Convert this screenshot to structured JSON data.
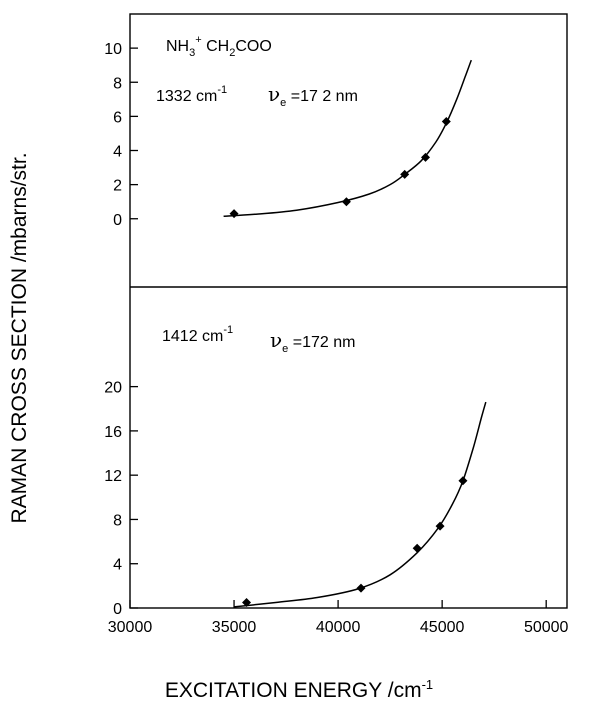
{
  "ylabel": "RAMAN CROSS SECTION /mbarns/str.",
  "xlabel": {
    "main": "EXCITATION ENERGY /cm",
    "sup": "-1"
  },
  "chart_data": [
    {
      "type": "scatter",
      "panel": "top",
      "annotations": {
        "formula": {
          "a": "NH",
          "a_sub": "3",
          "a_sup": "+",
          "b": " CH",
          "b_sub": "2",
          "c": "COO"
        },
        "band": {
          "text": "1332  cm",
          "sup": "-1"
        },
        "nu": {
          "symbol": "ν",
          "sub": "e",
          "rest": " =17 2 nm"
        }
      },
      "xlim": [
        30000,
        51000
      ],
      "ylim": [
        -4,
        12
      ],
      "yticks": [
        0,
        2,
        4,
        6,
        8,
        10
      ],
      "series": [
        {
          "points": [
            {
              "x": 35000,
              "y": 0.3
            },
            {
              "x": 40400,
              "y": 1.0
            },
            {
              "x": 43200,
              "y": 2.6
            },
            {
              "x": 44200,
              "y": 3.6
            },
            {
              "x": 45200,
              "y": 5.7
            }
          ],
          "fit": [
            {
              "x": 34500,
              "y": 0.15
            },
            {
              "x": 36000,
              "y": 0.26
            },
            {
              "x": 38000,
              "y": 0.5
            },
            {
              "x": 40000,
              "y": 0.95
            },
            {
              "x": 41500,
              "y": 1.45
            },
            {
              "x": 42500,
              "y": 2.0
            },
            {
              "x": 43200,
              "y": 2.6
            },
            {
              "x": 44000,
              "y": 3.4
            },
            {
              "x": 44700,
              "y": 4.5
            },
            {
              "x": 45200,
              "y": 5.6
            },
            {
              "x": 45700,
              "y": 7.0
            },
            {
              "x": 46100,
              "y": 8.3
            },
            {
              "x": 46400,
              "y": 9.3
            }
          ]
        }
      ]
    },
    {
      "type": "scatter",
      "panel": "bottom",
      "annotations": {
        "band": {
          "text": "1412 cm",
          "sup": "-1"
        },
        "nu": {
          "symbol": "ν",
          "sub": "e",
          "rest": " =172 nm"
        }
      },
      "xlim": [
        30000,
        51000
      ],
      "ylim": [
        0,
        29
      ],
      "xticks": [
        30000,
        35000,
        40000,
        45000,
        50000
      ],
      "yticks": [
        0,
        4,
        8,
        12,
        16,
        20
      ],
      "series": [
        {
          "points": [
            {
              "x": 35600,
              "y": 0.5
            },
            {
              "x": 41100,
              "y": 1.8
            },
            {
              "x": 43800,
              "y": 5.4
            },
            {
              "x": 44900,
              "y": 7.4
            },
            {
              "x": 46000,
              "y": 11.5
            }
          ],
          "fit": [
            {
              "x": 35000,
              "y": 0.1
            },
            {
              "x": 37000,
              "y": 0.5
            },
            {
              "x": 39000,
              "y": 0.95
            },
            {
              "x": 41000,
              "y": 1.75
            },
            {
              "x": 42500,
              "y": 3.0
            },
            {
              "x": 43800,
              "y": 5.0
            },
            {
              "x": 44800,
              "y": 7.2
            },
            {
              "x": 45500,
              "y": 9.4
            },
            {
              "x": 46000,
              "y": 11.5
            },
            {
              "x": 46500,
              "y": 14.5
            },
            {
              "x": 46900,
              "y": 17.3
            },
            {
              "x": 47100,
              "y": 18.6
            }
          ]
        }
      ]
    }
  ]
}
